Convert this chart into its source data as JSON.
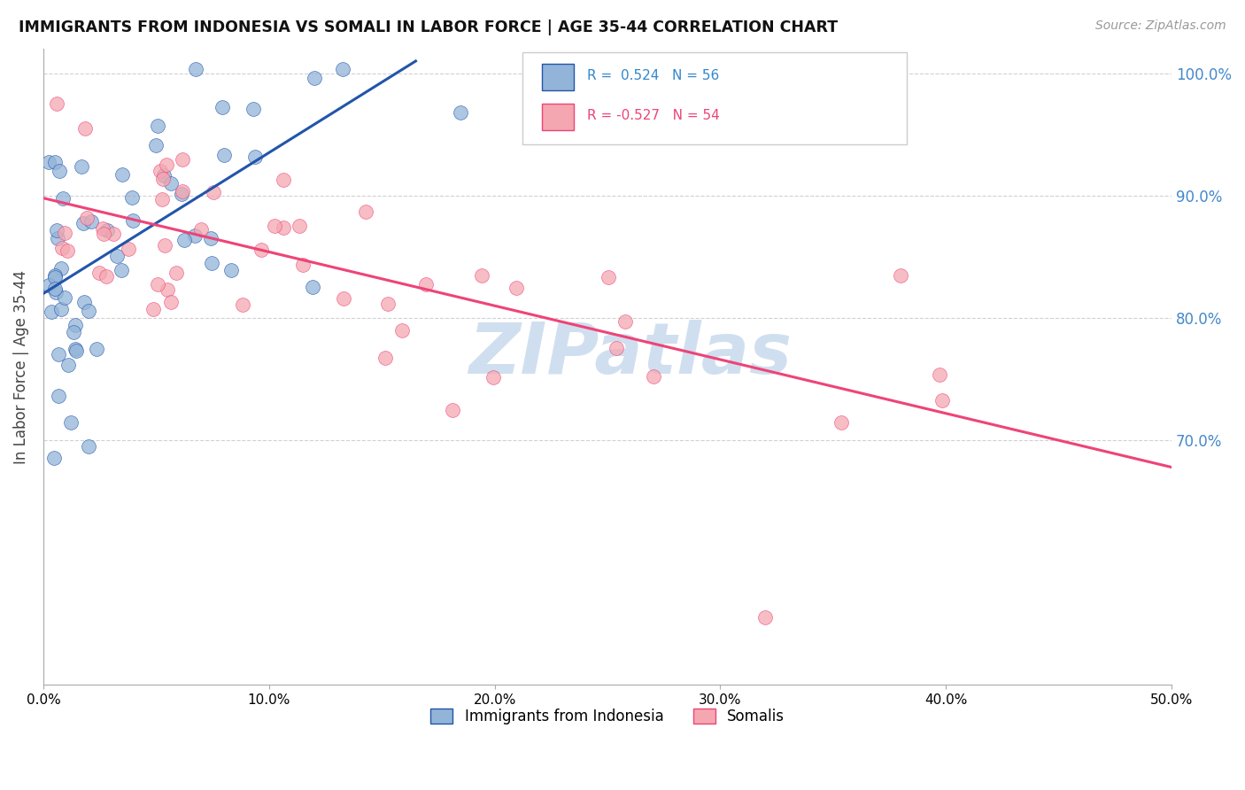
{
  "title": "IMMIGRANTS FROM INDONESIA VS SOMALI IN LABOR FORCE | AGE 35-44 CORRELATION CHART",
  "source": "Source: ZipAtlas.com",
  "ylabel": "In Labor Force | Age 35-44",
  "legend_label_1": "Immigrants from Indonesia",
  "legend_label_2": "Somalis",
  "r1": 0.524,
  "n1": 56,
  "r2": -0.527,
  "n2": 54,
  "xmin": 0.0,
  "xmax": 0.5,
  "ymin": 0.5,
  "ymax": 1.02,
  "yticks": [
    0.7,
    0.8,
    0.9,
    1.0
  ],
  "xticks": [
    0.0,
    0.1,
    0.2,
    0.3,
    0.4,
    0.5
  ],
  "color_blue": "#92B4D8",
  "color_pink": "#F4A7B0",
  "color_blue_line": "#2255AA",
  "color_pink_line": "#EE4477",
  "watermark": "ZIPatlas",
  "watermark_color": "#D0DFF0",
  "blue_line_x0": 0.0,
  "blue_line_x1": 0.165,
  "blue_line_y0": 0.82,
  "blue_line_y1": 1.01,
  "pink_line_x0": 0.0,
  "pink_line_x1": 0.5,
  "pink_line_y0": 0.898,
  "pink_line_y1": 0.678
}
